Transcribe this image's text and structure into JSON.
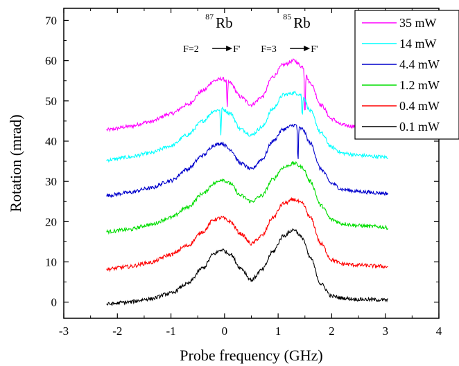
{
  "chart_data": {
    "type": "line",
    "title": "",
    "xlabel": "Probe frequency (GHz)",
    "ylabel": "Rotation (mrad)",
    "xlim": [
      -3,
      4
    ],
    "ylim": [
      -4,
      73
    ],
    "xticks": [
      -3,
      -2,
      -1,
      0,
      1,
      2,
      3,
      4
    ],
    "yticks": [
      0,
      10,
      20,
      30,
      40,
      50,
      60,
      70
    ],
    "legend_position": "top-right",
    "annotations": [
      {
        "label": "Rb",
        "superscript": "87",
        "transition": "F=2",
        "transition_end": "F'",
        "x": -0.1
      },
      {
        "label": "Rb",
        "superscript": "85",
        "transition": "F=3",
        "transition_end": "F'",
        "x": 1.35
      }
    ],
    "x": [
      -2.2,
      -1.8,
      -1.4,
      -1.0,
      -0.7,
      -0.4,
      -0.2,
      -0.05,
      0.1,
      0.3,
      0.5,
      0.7,
      0.9,
      1.1,
      1.3,
      1.45,
      1.6,
      1.8,
      2.0,
      2.2,
      2.5,
      2.8,
      3.05
    ],
    "series": [
      {
        "name": "35 mW",
        "color": "#ff00ff",
        "values": [
          42.8,
          43.6,
          44.8,
          46.8,
          49.0,
          52.5,
          55.0,
          55.5,
          54.5,
          51.0,
          49.0,
          51.0,
          56.0,
          59.0,
          60.0,
          58.5,
          54.5,
          49.0,
          45.5,
          44.0,
          43.5,
          43.2,
          43.0
        ],
        "dips": [
          {
            "x": 0.05,
            "to": 47.5
          },
          {
            "x": 1.5,
            "to": 44.5
          }
        ]
      },
      {
        "name": "14 mW",
        "color": "#00ffff",
        "values": [
          35.3,
          36.0,
          37.0,
          38.8,
          41.5,
          45.0,
          47.5,
          48.0,
          47.0,
          43.0,
          41.5,
          43.5,
          48.0,
          51.5,
          52.0,
          51.5,
          47.5,
          42.0,
          38.5,
          37.0,
          36.5,
          36.2,
          36.0
        ],
        "dips": [
          {
            "x": -0.07,
            "to": 41.0
          },
          {
            "x": 1.45,
            "to": 45.0
          }
        ]
      },
      {
        "name": "4.4 mW",
        "color": "#0000cc",
        "values": [
          26.5,
          27.2,
          28.3,
          30.2,
          33.0,
          36.5,
          39.0,
          39.5,
          38.0,
          34.5,
          33.0,
          35.5,
          40.0,
          43.0,
          44.0,
          43.0,
          39.5,
          33.0,
          29.5,
          28.0,
          27.5,
          27.2,
          27.0
        ],
        "dips": [
          {
            "x": 1.37,
            "to": 33.5
          }
        ]
      },
      {
        "name": "1.2 mW",
        "color": "#00dd00",
        "values": [
          17.5,
          18.0,
          19.2,
          21.0,
          23.5,
          27.0,
          29.5,
          30.5,
          29.5,
          26.5,
          25.0,
          26.5,
          30.5,
          33.5,
          34.5,
          33.5,
          30.0,
          24.0,
          20.5,
          19.5,
          19.0,
          18.8,
          18.5
        ],
        "dips": []
      },
      {
        "name": "0.4 mW",
        "color": "#ff0000",
        "values": [
          8.2,
          8.8,
          9.8,
          11.8,
          14.0,
          17.5,
          20.5,
          21.0,
          20.0,
          17.0,
          14.5,
          16.5,
          21.0,
          24.5,
          25.5,
          24.5,
          21.0,
          14.5,
          10.5,
          9.5,
          9.2,
          9.0,
          8.8
        ],
        "dips": []
      },
      {
        "name": "0.1 mW",
        "color": "#000000",
        "values": [
          -0.5,
          0.0,
          0.8,
          2.2,
          4.5,
          8.5,
          12.0,
          13.0,
          12.0,
          8.5,
          5.5,
          8.0,
          12.5,
          16.5,
          18.0,
          16.0,
          11.0,
          4.5,
          1.5,
          1.0,
          0.7,
          0.6,
          0.5
        ],
        "dips": []
      }
    ]
  }
}
